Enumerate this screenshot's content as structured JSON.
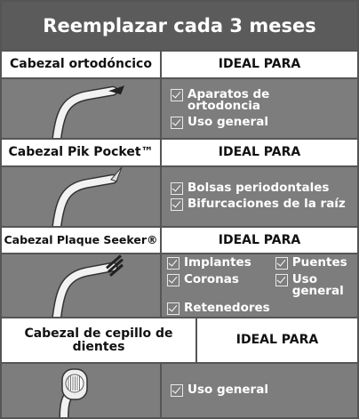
{
  "header": {
    "title": "Reemplazar cada 3 meses"
  },
  "rows": [
    {
      "name": "Cabezal ortodóncico",
      "column_label": "IDEAL PARA",
      "items": [
        "Aparatos de ortodoncia",
        "Uso general"
      ]
    },
    {
      "name": "Cabezal Pik Pocket™",
      "column_label": "IDEAL PARA",
      "items": [
        "Bolsas periodontales",
        "Bifurcaciones de la raíz"
      ]
    },
    {
      "name": "Cabezal Plaque Seeker®",
      "column_label": "IDEAL PARA",
      "items": [
        "Implantes",
        "Puentes",
        "Coronas",
        "Uso general",
        "Retenedores"
      ]
    },
    {
      "name": "Cabezal de cepillo de dientes",
      "column_label": "IDEAL PARA",
      "items": [
        "Uso general"
      ]
    }
  ]
}
